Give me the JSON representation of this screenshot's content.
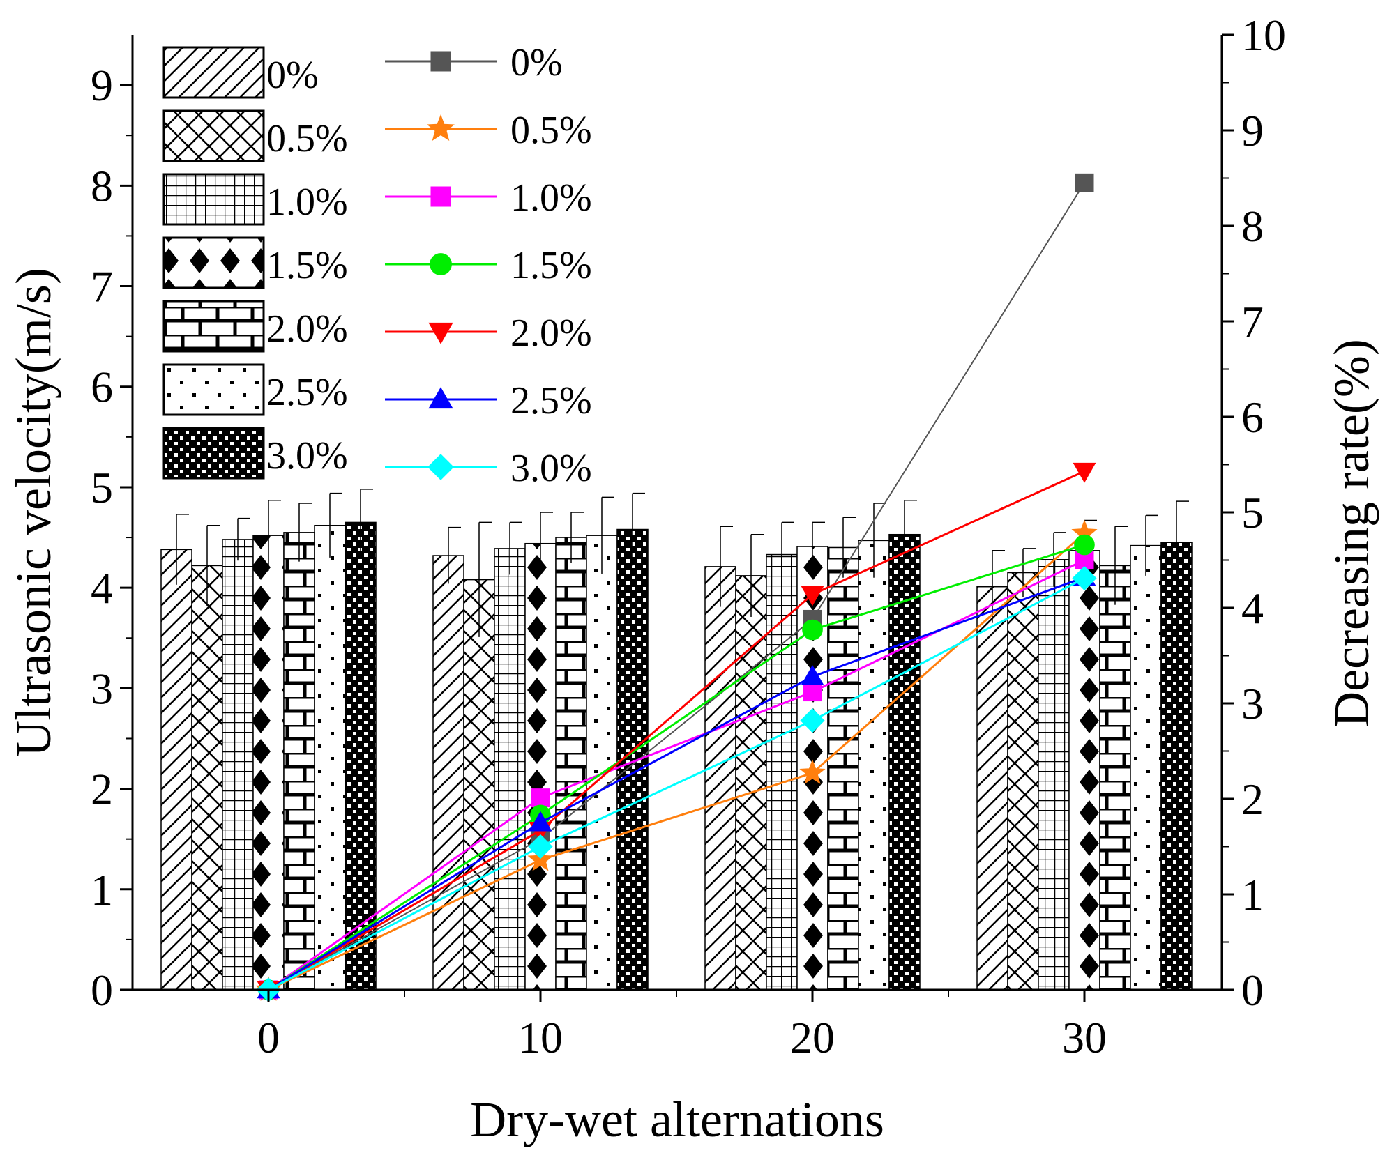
{
  "chart_data": {
    "type": "bar+line",
    "xlabel": "Dry-wet alternations",
    "ylabel_left": "Ultrasonic velocity(m/s)",
    "ylabel_right": "Decreasing rate(%)",
    "categories": [
      "0",
      "10",
      "20",
      "30"
    ],
    "ylim_left": [
      0,
      9.5
    ],
    "yticks_left": [
      "0",
      "1",
      "2",
      "3",
      "4",
      "5",
      "6",
      "7",
      "8",
      "9"
    ],
    "ylim_right": [
      0,
      10
    ],
    "yticks_right": [
      "0",
      "1",
      "2",
      "3",
      "4",
      "5",
      "6",
      "7",
      "8",
      "9",
      "10"
    ],
    "bar_series": [
      {
        "name": "0%",
        "pattern": "diagonal",
        "values": [
          4.38,
          4.32,
          4.21,
          4.01
        ],
        "errors": [
          0.35,
          0.28,
          0.4,
          0.36
        ]
      },
      {
        "name": "0.5%",
        "pattern": "crosshatch",
        "values": [
          4.22,
          4.08,
          4.12,
          4.15
        ],
        "errors": [
          0.4,
          0.57,
          0.41,
          0.24
        ]
      },
      {
        "name": "1.0%",
        "pattern": "grid",
        "values": [
          4.48,
          4.39,
          4.33,
          4.28
        ],
        "errors": [
          0.21,
          0.26,
          0.32,
          0.27
        ]
      },
      {
        "name": "1.5%",
        "pattern": "diamond-dots",
        "values": [
          4.52,
          4.44,
          4.41,
          4.37
        ],
        "errors": [
          0.35,
          0.31,
          0.24,
          0.3
        ]
      },
      {
        "name": "2.0%",
        "pattern": "brick",
        "values": [
          4.55,
          4.5,
          4.4,
          4.22
        ],
        "errors": [
          0.29,
          0.25,
          0.3,
          0.39
        ]
      },
      {
        "name": "2.5%",
        "pattern": "sparse-dots",
        "values": [
          4.62,
          4.52,
          4.47,
          4.42
        ],
        "errors": [
          0.32,
          0.38,
          0.37,
          0.3
        ]
      },
      {
        "name": "3.0%",
        "pattern": "dense-checker",
        "values": [
          4.65,
          4.58,
          4.53,
          4.45
        ],
        "errors": [
          0.33,
          0.36,
          0.34,
          0.41
        ]
      }
    ],
    "line_series": [
      {
        "name": "0%",
        "color": "#555555",
        "marker": "square",
        "values": [
          0,
          1.58,
          3.88,
          8.45
        ]
      },
      {
        "name": "0.5%",
        "color": "#ff7f0e",
        "marker": "star",
        "values": [
          0,
          1.36,
          2.27,
          4.78
        ]
      },
      {
        "name": "1.0%",
        "color": "#ff00ff",
        "marker": "square",
        "values": [
          0,
          2.01,
          3.12,
          4.5
        ]
      },
      {
        "name": "1.5%",
        "color": "#00ee00",
        "marker": "circle",
        "values": [
          0,
          1.83,
          3.77,
          4.66
        ]
      },
      {
        "name": "2.0%",
        "color": "#ff0000",
        "marker": "triangle-down",
        "values": [
          0,
          1.67,
          4.14,
          5.43
        ]
      },
      {
        "name": "2.5%",
        "color": "#0000ff",
        "marker": "triangle-up",
        "values": [
          0,
          1.75,
          3.28,
          4.32
        ]
      },
      {
        "name": "3.0%",
        "color": "#00ffff",
        "marker": "diamond",
        "values": [
          0,
          1.5,
          2.82,
          4.31
        ]
      }
    ],
    "legend_position": "top-left"
  }
}
